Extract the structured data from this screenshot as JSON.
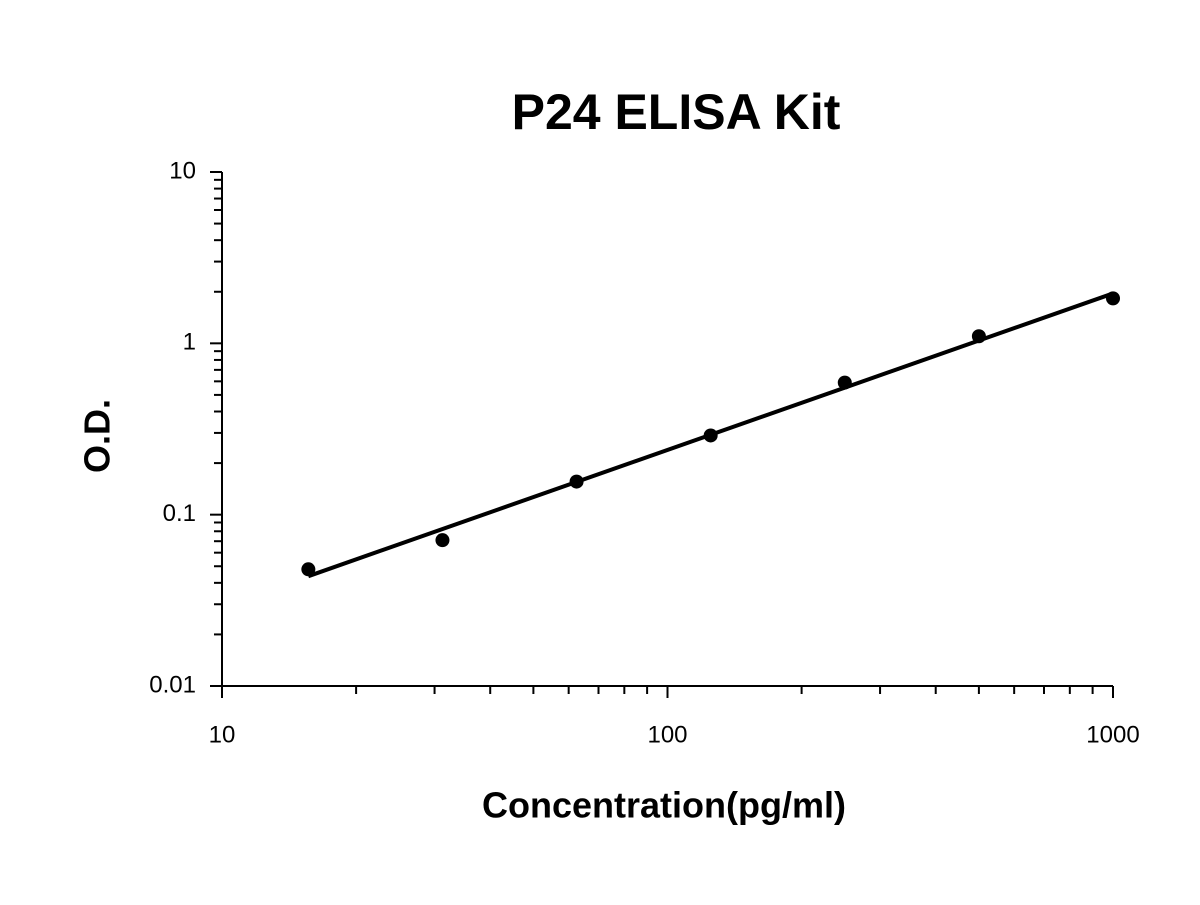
{
  "chart_data": {
    "type": "scatter",
    "title": "P24 ELISA Kit",
    "xlabel": "Concentration(pg/ml)",
    "ylabel": "O.D.",
    "x": [
      15.625,
      31.25,
      62.5,
      125,
      250,
      500,
      1000
    ],
    "values": [
      0.048,
      0.071,
      0.156,
      0.29,
      0.59,
      1.1,
      1.83
    ],
    "color": "#000000",
    "xlim": [
      10,
      1000
    ],
    "ylim": [
      0.01,
      10
    ],
    "xticks": [
      10,
      100,
      1000
    ],
    "yticks": [
      0.01,
      0.1,
      1,
      10
    ],
    "x_log_scale": true,
    "y_log_scale": true,
    "trendline": true
  }
}
